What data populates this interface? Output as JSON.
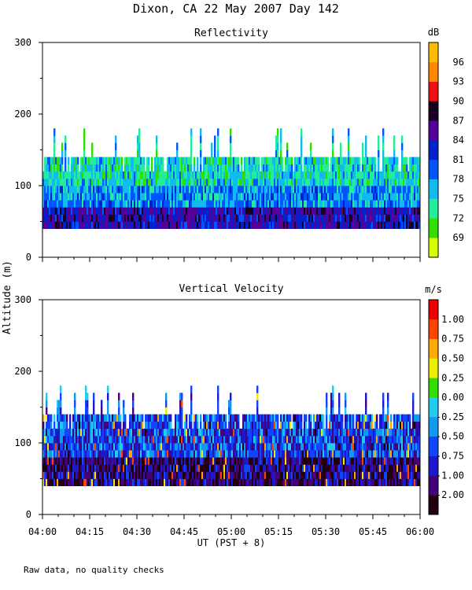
{
  "title": "Dixon, CA 22 May 2007  Day 142",
  "ylabel": "Altitude (m)",
  "xlabel": "UT  (PST + 8)",
  "footnote": "Raw data, no quality checks",
  "x_ticks": [
    "04:00",
    "04:15",
    "04:30",
    "04:45",
    "05:00",
    "05:15",
    "05:30",
    "05:45",
    "06:00"
  ],
  "chart_data": [
    {
      "type": "heatmap",
      "title": "Reflectivity",
      "x_range": [
        "04:00",
        "06:00"
      ],
      "ylim": [
        0,
        300
      ],
      "y_ticks": [
        0,
        100,
        200,
        300
      ],
      "data_extent_m": {
        "bottom": 40,
        "top_typical": 140,
        "top_max": 180
      },
      "colorbar": {
        "unit": "dB",
        "levels": [
          69,
          72,
          75,
          78,
          81,
          84,
          87,
          90,
          93,
          96
        ],
        "labels": [
          "96",
          "93",
          "90",
          "87",
          "84",
          "81",
          "78",
          "75",
          "72",
          "69"
        ],
        "colors": [
          "#d4ff00",
          "#33dd00",
          "#22ee99",
          "#11bbee",
          "#0055ff",
          "#0022cc",
          "#550099",
          "#1a0022",
          "#ee1111",
          "#ff8800",
          "#ffbb00"
        ]
      }
    },
    {
      "type": "heatmap",
      "title": "Vertical Velocity",
      "x_range": [
        "04:00",
        "06:00"
      ],
      "ylim": [
        0,
        300
      ],
      "y_ticks": [
        0,
        100,
        200,
        300
      ],
      "data_extent_m": {
        "bottom": 40,
        "top_typical": 140,
        "top_max": 180
      },
      "colorbar": {
        "unit": "m/s",
        "levels": [
          -2.0,
          -1.0,
          -0.75,
          -0.5,
          -0.25,
          0.0,
          0.25,
          0.5,
          0.75,
          1.0
        ],
        "labels": [
          "1.00",
          "0.75",
          "0.50",
          "0.25",
          "0.00",
          "-0.25",
          "-0.50",
          "-0.75",
          "-1.00",
          "-2.00"
        ],
        "colors": [
          "#22000f",
          "#440077",
          "#1a1acc",
          "#1144ff",
          "#1199ee",
          "#22ccee",
          "#33dd00",
          "#eeee00",
          "#ffaa00",
          "#ff4400",
          "#ee0000"
        ]
      }
    }
  ]
}
